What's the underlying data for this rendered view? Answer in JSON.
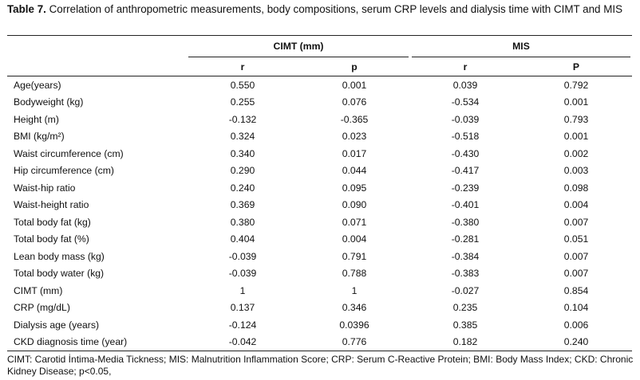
{
  "caption": {
    "label": "Table 7.",
    "text": " Correlation of anthropometric measurements, body compositions, serum CRP levels and dialysis time with CIMT and MIS"
  },
  "table": {
    "groups": [
      "CIMT (mm)",
      "MIS"
    ],
    "subheaders": [
      "r",
      "p",
      "r",
      "P"
    ],
    "rows": [
      {
        "label": "Age(years)",
        "values": [
          "0.550",
          "0.001",
          "0.039",
          "0.792"
        ]
      },
      {
        "label": "Bodyweight (kg)",
        "values": [
          "0.255",
          "0.076",
          "-0.534",
          "0.001"
        ]
      },
      {
        "label": "Height (m)",
        "values": [
          "-0.132",
          "-0.365",
          "-0.039",
          "0.793"
        ]
      },
      {
        "label": "BMI (kg/m²)",
        "values": [
          "0.324",
          "0.023",
          "-0.518",
          "0.001"
        ]
      },
      {
        "label": "Waist circumference (cm)",
        "values": [
          "0.340",
          "0.017",
          "-0.430",
          "0.002"
        ]
      },
      {
        "label": "Hip circumference (cm)",
        "values": [
          "0.290",
          "0.044",
          "-0.417",
          "0.003"
        ]
      },
      {
        "label": "Waist-hip ratio",
        "values": [
          "0.240",
          "0.095",
          "-0.239",
          "0.098"
        ]
      },
      {
        "label": "Waist-height ratio",
        "values": [
          "0.369",
          "0.090",
          "-0.401",
          "0.004"
        ]
      },
      {
        "label": "Total body fat (kg)",
        "values": [
          "0.380",
          "0.071",
          "-0.380",
          "0.007"
        ]
      },
      {
        "label": "Total body fat (%)",
        "values": [
          "0.404",
          "0.004",
          "-0.281",
          "0.051"
        ]
      },
      {
        "label": "Lean body mass (kg)",
        "values": [
          "-0.039",
          "0.791",
          "-0.384",
          "0.007"
        ]
      },
      {
        "label": "Total body water (kg)",
        "values": [
          "-0.039",
          "0.788",
          "-0.383",
          "0.007"
        ]
      },
      {
        "label": "CIMT (mm)",
        "values": [
          "1",
          "1",
          "-0.027",
          "0.854"
        ]
      },
      {
        "label": "CRP (mg/dL)",
        "values": [
          "0.137",
          "0.346",
          "0.235",
          "0.104"
        ]
      },
      {
        "label": "Dialysis age (years)",
        "values": [
          "-0.124",
          "0.0396",
          "0.385",
          "0.006"
        ]
      },
      {
        "label": "CKD diagnosis time (year)",
        "values": [
          "-0.042",
          "0.776",
          "0.182",
          "0.240"
        ]
      }
    ]
  },
  "footnote": "CIMT: Carotid İntima-Media Tickness; MIS: Malnutrition Inflammation Score; CRP: Serum C-Reactive Protein; BMI: Body Mass Index; CKD: Chronic Kidney Disease; p<0.05,"
}
